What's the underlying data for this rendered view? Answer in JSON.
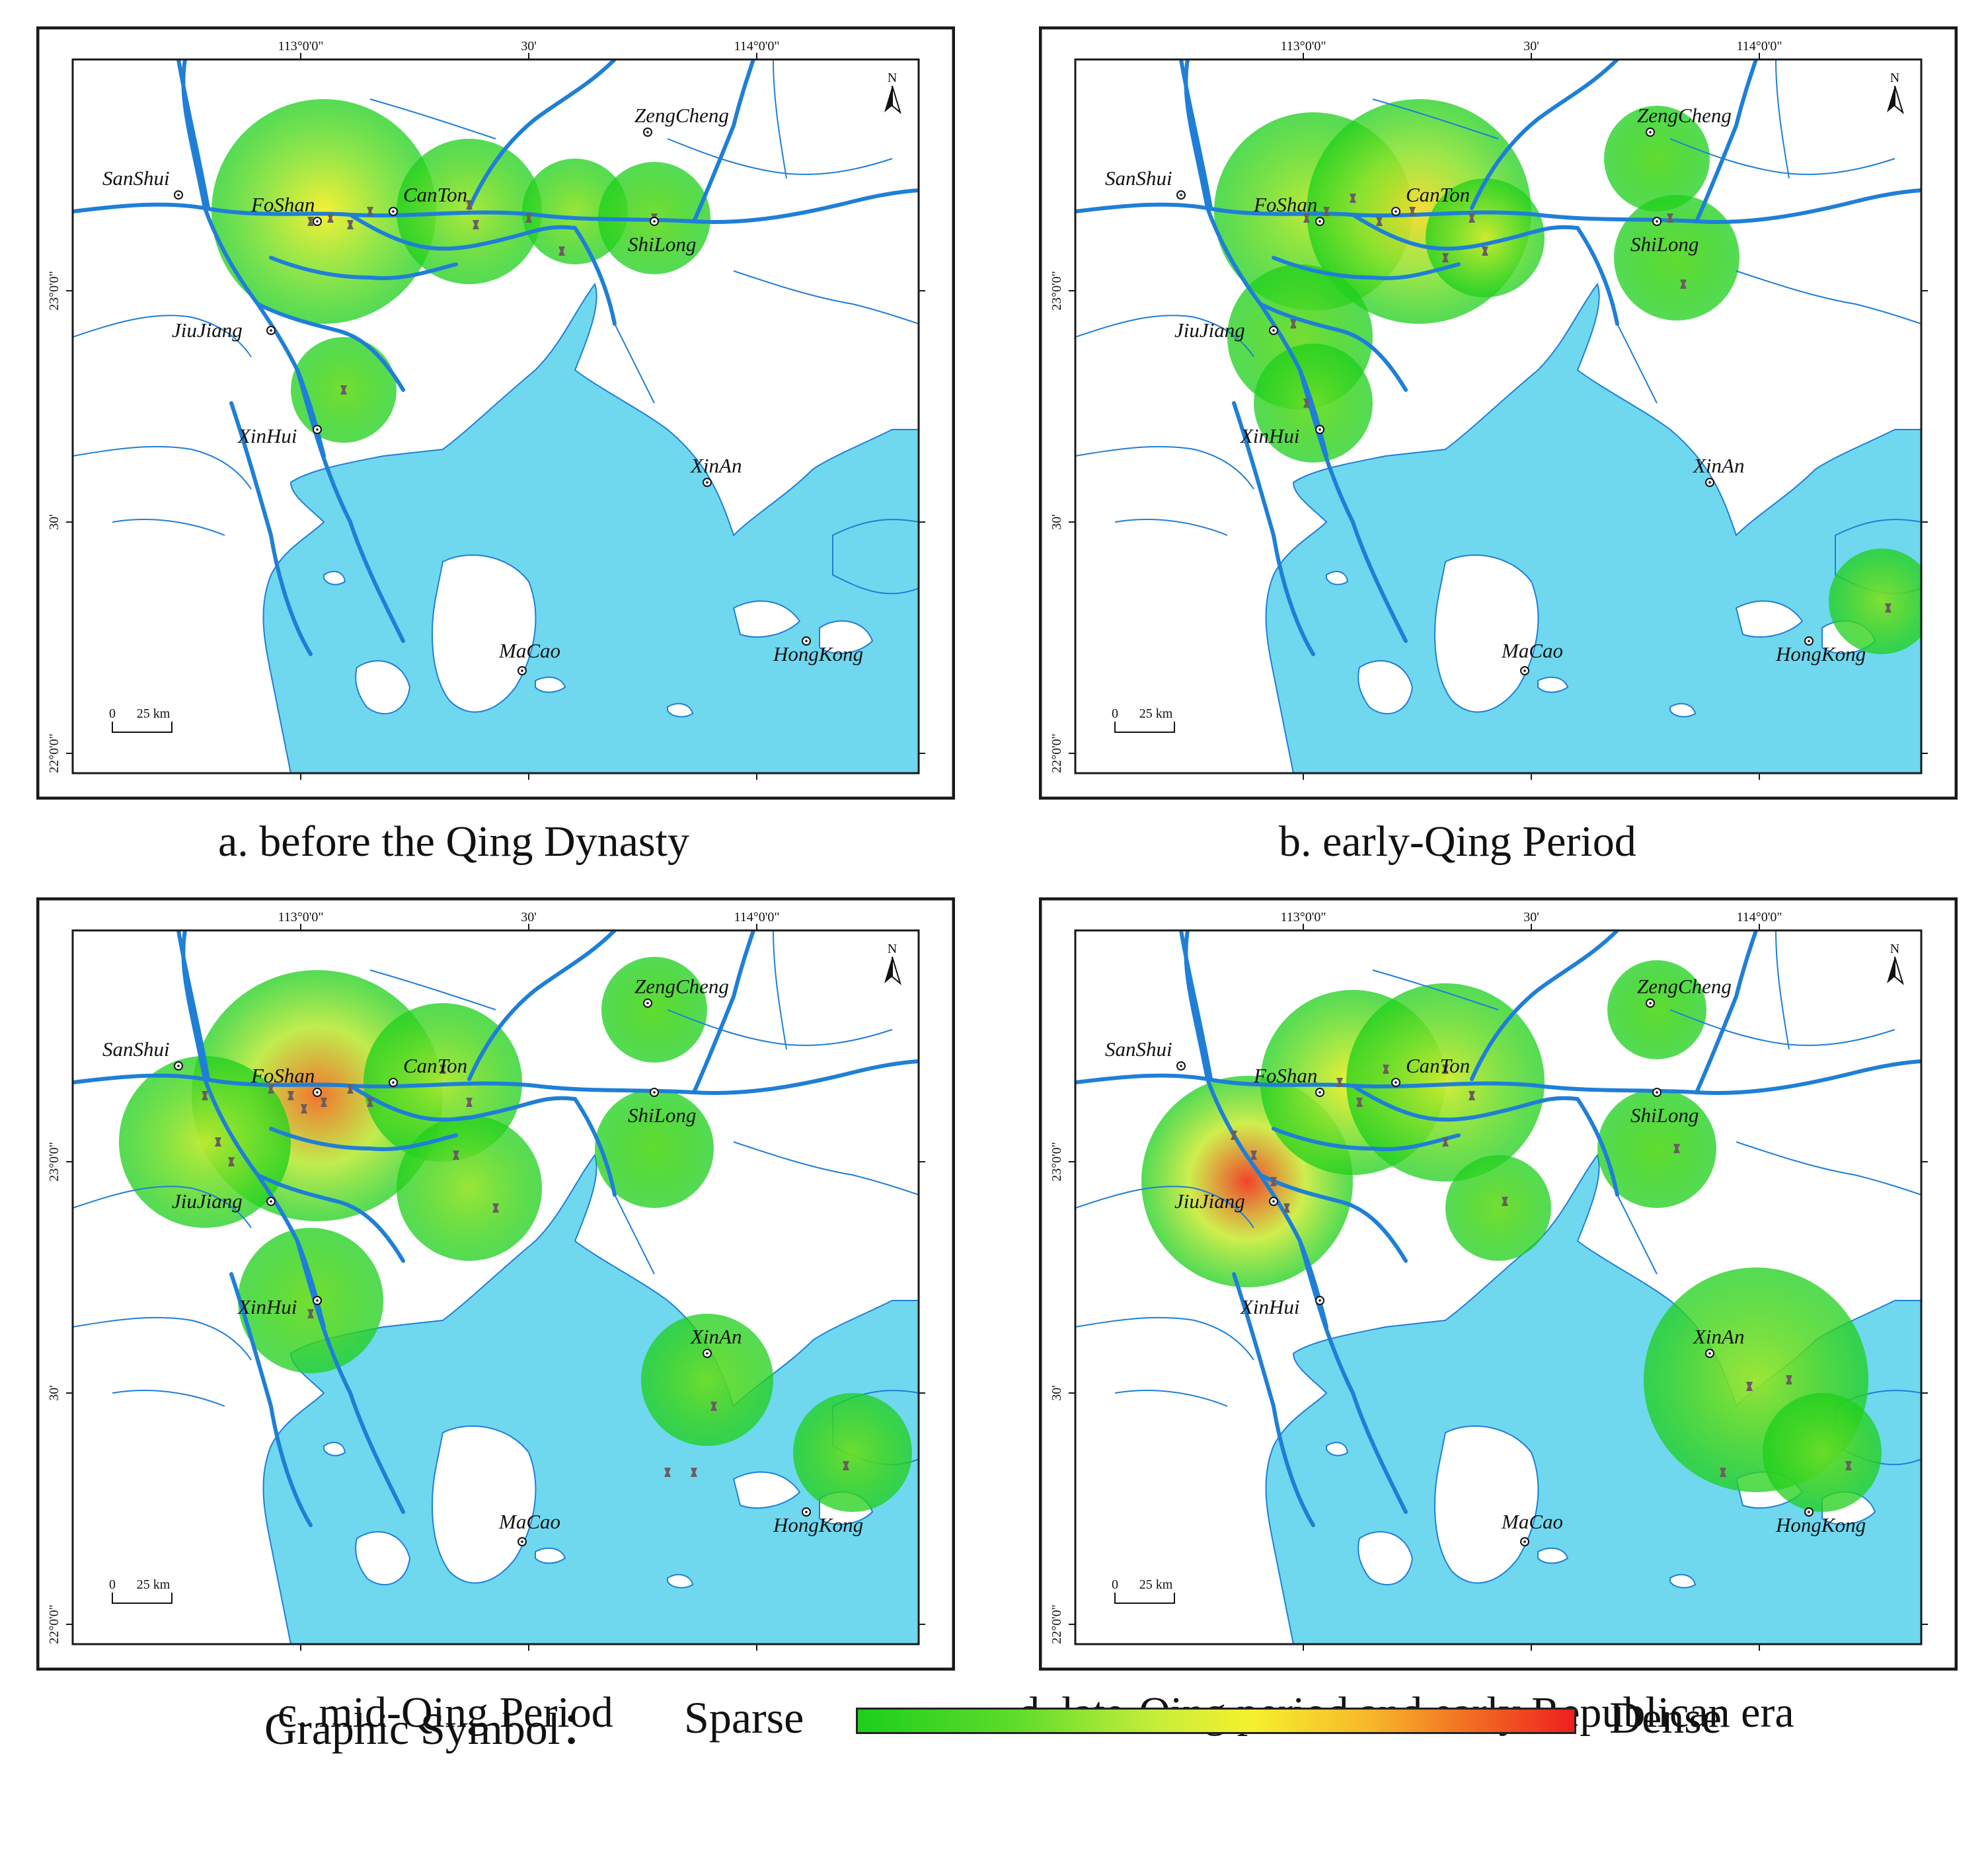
{
  "colors": {
    "water": "#6fd8ef",
    "river": "#1f7fd6",
    "frame": "#1a1a1a",
    "heat_sparse": "#1ccf1c",
    "heat_mid": "#f6f02c",
    "heat_dense": "#ee1f1f"
  },
  "map_labels": {
    "lon_labels": [
      "113°0'0\"",
      "30'",
      "114°0'0\""
    ],
    "lat_labels": [
      "23°0'0\"",
      "30'",
      "22°0'0\""
    ],
    "north": "N",
    "scale_zero": "0",
    "scale_value": "25 km"
  },
  "places": {
    "sanshui": "SanShui",
    "foshan": "FoShan",
    "canton": "CanTon",
    "zengcheng": "ZengCheng",
    "shilong": "ShiLong",
    "jiujiang": "JiuJiang",
    "xinhui": "XinHui",
    "xinan": "XinAn",
    "macao": "MaCao",
    "hongkong": "HongKong"
  },
  "panels": [
    {
      "caption": "a. before the Qing Dynasty"
    },
    {
      "caption": "b. early-Qing Period"
    },
    {
      "caption": "c. mid-Qing Period"
    },
    {
      "caption": "d. late-Qing period and early Republican era"
    }
  ],
  "legend": {
    "title": "Graphic Symbol：",
    "sparse": "Sparse",
    "dense": "Dense"
  }
}
